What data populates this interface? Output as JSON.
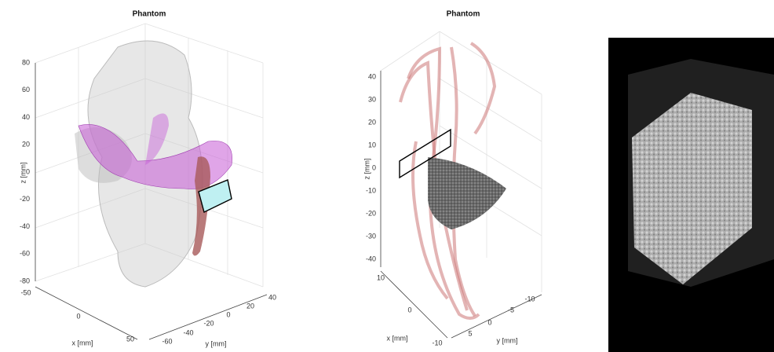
{
  "panels": [
    {
      "title": "Phantom",
      "z_label": "z [mm]",
      "x_label": "x [mm]",
      "y_label": "y [mm]",
      "z_ticks": [
        80,
        60,
        40,
        20,
        0,
        -20,
        -40,
        -60,
        -80
      ],
      "x_ticks": [
        -50,
        0,
        50
      ],
      "y_ticks": [
        -60,
        -40,
        -20,
        0,
        20,
        40
      ]
    },
    {
      "title": "Phantom",
      "z_label": "z [mm]",
      "x_label": "x [mm]",
      "y_label": "y [mm]",
      "z_ticks": [
        40,
        30,
        20,
        10,
        0,
        -10,
        -20,
        -30,
        -40
      ],
      "x_ticks": [
        10,
        0,
        -10
      ],
      "y_ticks": [
        5,
        0,
        -5,
        -10
      ]
    }
  ]
}
